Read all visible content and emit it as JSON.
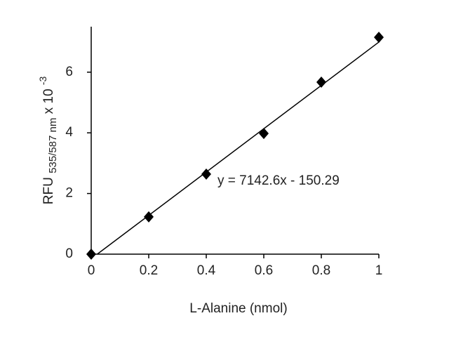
{
  "chart_data": {
    "type": "scatter",
    "x_label": "L-Alanine (nmol)",
    "y_label": {
      "main": "RFU",
      "sub": "535/587 nm",
      "factor": "x 10",
      "exponent": "-3"
    },
    "x": [
      0,
      0.2,
      0.4,
      0.6,
      0.8,
      1
    ],
    "values": [
      0,
      1.23,
      2.64,
      3.98,
      5.67,
      7.15
    ],
    "color": "#000000",
    "trendline": {
      "label": "y = 7142.6x - 150.29",
      "slope": 7.1426,
      "intercept": -0.15029,
      "color": "#000000"
    },
    "xlim": [
      0,
      1
    ],
    "xticks": [
      0,
      0.2,
      0.4,
      0.6,
      0.8,
      1
    ],
    "ylim": [
      0,
      7.5
    ],
    "yticks": [
      0,
      2,
      4,
      6
    ],
    "grid": false
  }
}
